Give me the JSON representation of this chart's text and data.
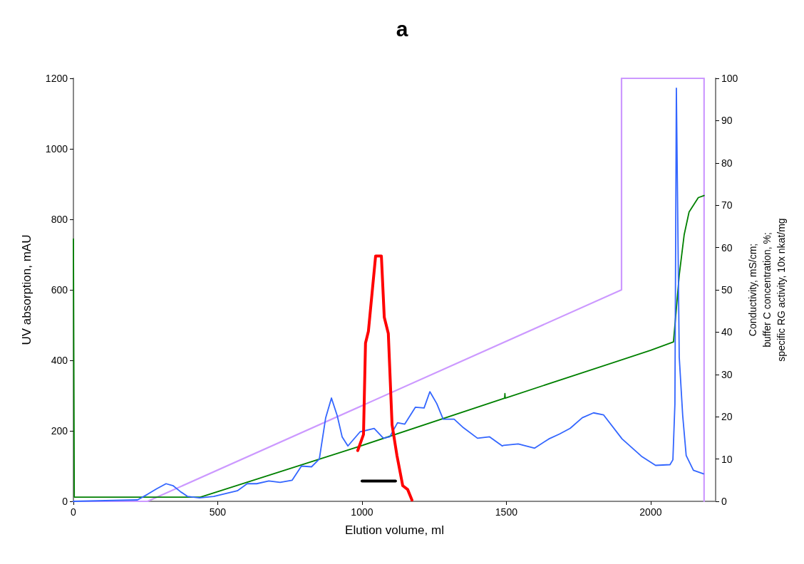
{
  "chart_data": {
    "type": "line",
    "title": "a",
    "xlabel": "Elution volume, ml",
    "ylabel": "UV absorption, mAU",
    "y2label": "Conductivity, mS/cm;\nbuffer C concentration, %;\nspecific RG activity, 10x nkat/mg",
    "xlim": [
      0,
      2225
    ],
    "xticks": [
      0,
      500,
      1000,
      1500,
      2000
    ],
    "ylim": [
      0,
      1200
    ],
    "yticks": [
      0,
      200,
      400,
      600,
      800,
      1000,
      1200
    ],
    "y2lim": [
      0,
      100
    ],
    "y2ticks": [
      0,
      10,
      20,
      30,
      40,
      50,
      60,
      70,
      80,
      90,
      100
    ],
    "grid": false,
    "marker": "none",
    "line_style": "solid",
    "series": [
      {
        "color": "#cc99ff",
        "axis": "y2",
        "x": [
          0,
          257,
          1899,
          1899,
          2185,
          2185
        ],
        "values": [
          0,
          0,
          50,
          100,
          100,
          0
        ]
      },
      {
        "color": "#008000",
        "axis": "y2",
        "x": [
          0,
          3,
          170,
          440,
          500,
          1000,
          1494,
          1495,
          1496,
          2000,
          2079,
          2099,
          2116,
          2133,
          2165,
          2185
        ],
        "values": [
          62,
          1,
          1,
          1,
          2.3,
          13.2,
          24.4,
          25.5,
          24.4,
          35.7,
          37.7,
          53.5,
          63,
          68.4,
          71.8,
          72.3
        ]
      },
      {
        "color": "#3366ff",
        "x": [
          0,
          222,
          257,
          289,
          321,
          346,
          370,
          395,
          437,
          486,
          568,
          602,
          635,
          677,
          716,
          758,
          790,
          825,
          852,
          874,
          894,
          914,
          931,
          951,
          993,
          1042,
          1074,
          1096,
          1123,
          1148,
          1185,
          1215,
          1235,
          1259,
          1281,
          1319,
          1351,
          1400,
          1442,
          1486,
          1491,
          1541,
          1598,
          1647,
          1684,
          1721,
          1763,
          1802,
          1837,
          1901,
          1968,
          2017,
          2067,
          2077,
          2084,
          2089,
          2099,
          2111,
          2123,
          2148,
          2183
        ],
        "values": [
          0,
          4,
          20,
          36,
          50,
          44,
          28,
          14,
          10,
          14,
          30,
          50,
          50,
          58,
          54,
          60,
          100,
          98,
          120,
          237,
          293,
          243,
          183,
          157,
          197,
          207,
          179,
          183,
          223,
          219,
          267,
          265,
          311,
          277,
          233,
          233,
          209,
          179,
          183,
          157,
          159,
          163,
          151,
          177,
          191,
          207,
          237,
          251,
          245,
          177,
          128,
          102,
          104,
          118,
          277,
          1172,
          409,
          243,
          130,
          88,
          78
        ]
      },
      {
        "color": "#ff0000",
        "axis": "y2",
        "x": [
          985,
          1005,
          1012,
          1022,
          1047,
          1067,
          1077,
          1091,
          1104,
          1121,
          1141,
          1158,
          1173
        ],
        "values": [
          12,
          15.8,
          37.4,
          40.2,
          58,
          58,
          43.5,
          39.7,
          18.1,
          10.8,
          3.7,
          2.8,
          0.3
        ]
      },
      {
        "color": "#000000",
        "axis": "y2",
        "x": [
          1000,
          1116
        ],
        "values": [
          4.8,
          4.8
        ]
      }
    ]
  }
}
